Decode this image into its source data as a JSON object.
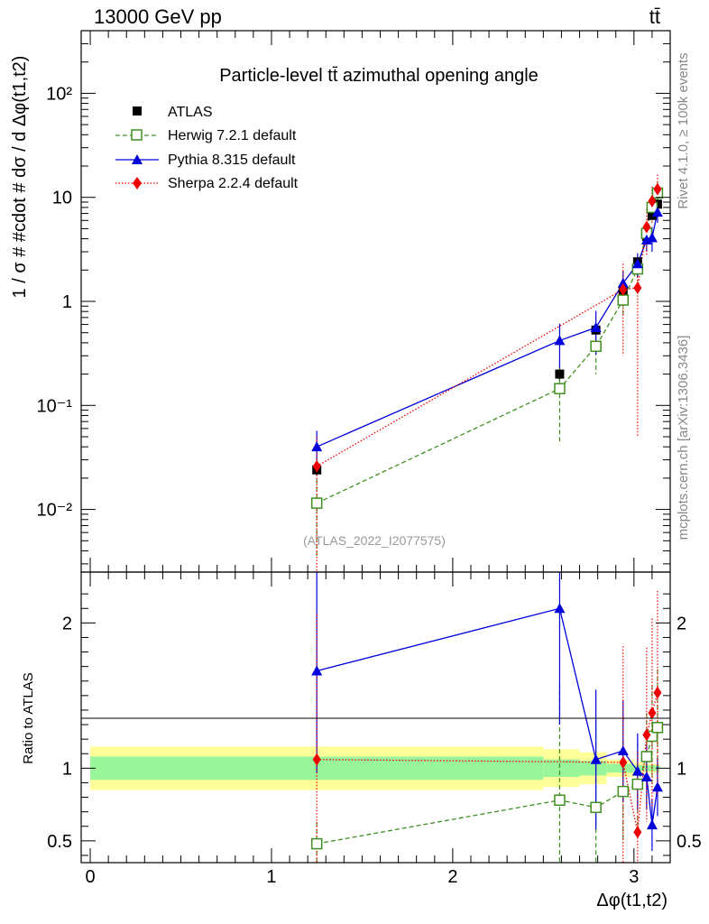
{
  "header": {
    "energy": "13000 GeV pp",
    "process": "tt̄"
  },
  "side_labels": {
    "rivet": "Rivet 4.1.0, ≥ 100k events",
    "mcplots": "mcplots.cern.ch [arXiv:1306.3436]"
  },
  "watermark": "(ATLAS_2022_I2077575)",
  "colors": {
    "atlas": "#000000",
    "herwig": "#3f8f1f",
    "pythia": "#0000dd",
    "sherpa": "#ee0000",
    "band_inner": "#99f599",
    "band_outer": "#ffff99"
  },
  "chart_data": [
    {
      "type": "scatter",
      "title": "Particle-level tt̄ azimuthal opening angle",
      "ylabel": "1 / σ # #cdot # dσ / d Δφ(t1,t2)",
      "yscale": "log",
      "ylim": [
        0.0025,
        400
      ],
      "xlim": [
        -0.05,
        3.2
      ],
      "y_ticks": [
        {
          "v": 0.01,
          "label": "10⁻²"
        },
        {
          "v": 0.1,
          "label": "10⁻¹"
        },
        {
          "v": 1,
          "label": "1"
        },
        {
          "v": 10,
          "label": "10"
        },
        {
          "v": 100,
          "label": "10²"
        }
      ],
      "series": [
        {
          "name": "ATLAS",
          "key": "atlas",
          "x": [
            1.25,
            2.59,
            2.79,
            2.94,
            3.02,
            3.07,
            3.1,
            3.13
          ],
          "y": [
            0.024,
            0.2,
            0.53,
            1.25,
            2.4,
            4.2,
            6.7,
            8.6
          ],
          "err": [
            0.003,
            0.03,
            0.06,
            0.12,
            0.2,
            0.35,
            0.6,
            0.7
          ]
        },
        {
          "name": "Herwig 7.2.1 default",
          "key": "herwig",
          "x": [
            1.25,
            2.59,
            2.79,
            2.94,
            3.02,
            3.07,
            3.1,
            3.13
          ],
          "y": [
            0.0115,
            0.145,
            0.37,
            1.03,
            2.05,
            4.5,
            8.0,
            11.0
          ],
          "err": [
            0.008,
            0.1,
            0.17,
            0.3,
            0.5,
            1.0,
            2.0,
            3.0
          ]
        },
        {
          "name": "Pythia 8.315 default",
          "key": "pythia",
          "x": [
            1.25,
            2.59,
            2.79,
            2.94,
            3.02,
            3.07,
            3.1,
            3.13
          ],
          "y": [
            0.04,
            0.42,
            0.56,
            1.5,
            2.3,
            3.9,
            4.1,
            7.2
          ],
          "err": [
            0.017,
            0.19,
            0.25,
            0.45,
            0.6,
            0.9,
            1.1,
            1.5
          ]
        },
        {
          "name": "Sherpa 2.2.4 default",
          "key": "sherpa",
          "x": [
            1.25,
            2.94,
            3.02,
            3.07,
            3.1,
            3.13
          ],
          "y": [
            0.026,
            1.3,
            1.35,
            5.2,
            9.2,
            12.0
          ],
          "err": [
            0.024,
            1.0,
            1.3,
            2.5,
            3.5,
            4.5
          ]
        }
      ]
    },
    {
      "type": "scatter",
      "ylabel": "Ratio to ATLAS",
      "xlabel": "Δφ(t1,t2)",
      "ylim": [
        0.35,
        2.35
      ],
      "xlim": [
        -0.05,
        3.2
      ],
      "x_ticks": [
        0,
        1,
        2,
        3
      ],
      "y_ticks": [
        0.5,
        1,
        2
      ],
      "y_tick_labels": [
        "0.5",
        "1",
        "2"
      ],
      "bands": {
        "edges": [
          0.0,
          2.5,
          2.7,
          2.85,
          3.0,
          3.05,
          3.09,
          3.12,
          3.1416
        ],
        "inner_half": [
          0.08,
          0.06,
          0.05,
          0.03,
          0.02,
          0.02,
          0.02,
          0.02
        ],
        "outer_half": [
          0.15,
          0.13,
          0.11,
          0.06,
          0.04,
          0.03,
          0.03,
          0.03
        ]
      },
      "series": [
        {
          "name": "Herwig 7.2.1 default",
          "key": "herwig",
          "x": [
            1.25,
            2.59,
            2.79,
            2.94,
            3.02,
            3.07,
            3.1,
            3.13
          ],
          "y": [
            0.48,
            0.78,
            0.73,
            0.84,
            0.89,
            1.08,
            1.22,
            1.28
          ],
          "err": [
            0.15,
            0.8,
            0.6,
            0.35,
            0.28,
            0.3,
            0.35,
            0.4
          ]
        },
        {
          "name": "Pythia 8.315 default",
          "key": "pythia",
          "x": [
            1.25,
            2.59,
            2.79,
            2.94,
            3.02,
            3.07,
            3.1,
            3.13
          ],
          "y": [
            1.67,
            2.1,
            1.06,
            1.12,
            0.98,
            0.94,
            0.61,
            0.87
          ],
          "err": [
            0.7,
            0.8,
            0.48,
            0.35,
            0.26,
            0.22,
            0.18,
            0.2
          ]
        },
        {
          "name": "Sherpa 2.2.4 default",
          "key": "sherpa",
          "x": [
            1.25,
            2.94,
            3.02,
            3.07,
            3.1,
            3.13
          ],
          "y": [
            1.06,
            1.04,
            0.56,
            1.23,
            1.38,
            1.52
          ],
          "err": [
            1.0,
            0.8,
            0.55,
            0.6,
            0.65,
            0.7
          ]
        }
      ]
    }
  ]
}
